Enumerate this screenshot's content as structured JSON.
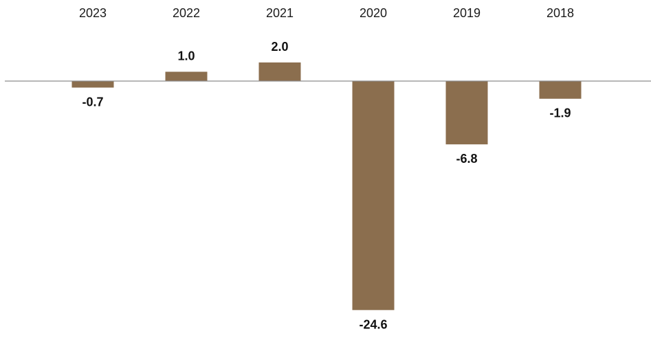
{
  "chart_data": {
    "type": "bar",
    "categories": [
      "2023",
      "2022",
      "2021",
      "2020",
      "2019",
      "2018"
    ],
    "values": [
      -0.7,
      1.0,
      2.0,
      -24.6,
      -6.8,
      -1.9
    ],
    "data_labels": [
      "-0.7",
      "1.0",
      "2.0",
      "-24.6",
      "-6.8",
      "-1.9"
    ],
    "title": "",
    "xlabel": "",
    "ylabel": "",
    "ylim": [
      -24.6,
      2.0
    ],
    "grid": false,
    "legend": "none",
    "category_axis_position": "top",
    "colors": {
      "bar": "#8b6e4e",
      "zero_line": "#8c8c8c",
      "text": "#111111"
    }
  }
}
